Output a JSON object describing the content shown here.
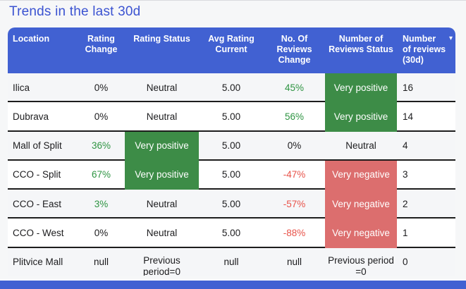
{
  "page": {
    "title": "Trends in the last 30d"
  },
  "table": {
    "sort_icon": "▾",
    "columns": [
      {
        "label": "Location"
      },
      {
        "label": "Rating Change"
      },
      {
        "label": "Rating Status"
      },
      {
        "label": "Avg Rating Current"
      },
      {
        "label": "No. Of Reviews Change"
      },
      {
        "label": "Number of Reviews Status"
      },
      {
        "label": "Number of reviews (30d)",
        "sorted": "desc"
      }
    ],
    "rows": [
      {
        "location": "Ilica",
        "rating_change": "0%",
        "rating_status": "Neutral",
        "avg_rating_current": "5.00",
        "reviews_change": "45%",
        "reviews_status": "Very positive",
        "reviews_30d": "16"
      },
      {
        "location": "Dubrava",
        "rating_change": "0%",
        "rating_status": "Neutral",
        "avg_rating_current": "5.00",
        "reviews_change": "56%",
        "reviews_status": "Very positive",
        "reviews_30d": "14"
      },
      {
        "location": "Mall of Split",
        "rating_change": "36%",
        "rating_status": "Very positive",
        "avg_rating_current": "5.00",
        "reviews_change": "0%",
        "reviews_status": "Neutral",
        "reviews_30d": "4"
      },
      {
        "location": "CCO - Split",
        "rating_change": "67%",
        "rating_status": "Very positive",
        "avg_rating_current": "5.00",
        "reviews_change": "-47%",
        "reviews_status": "Very negative",
        "reviews_30d": "3"
      },
      {
        "location": "CCO - East",
        "rating_change": "3%",
        "rating_status": "Neutral",
        "avg_rating_current": "5.00",
        "reviews_change": "-57%",
        "reviews_status": "Very negative",
        "reviews_30d": "2"
      },
      {
        "location": "CCO - West",
        "rating_change": "0%",
        "rating_status": "Neutral",
        "avg_rating_current": "5.00",
        "reviews_change": "-88%",
        "reviews_status": "Very negative",
        "reviews_30d": "1"
      },
      {
        "location": "Plitvice Mall",
        "rating_change": "null",
        "rating_status": "Previous period=0",
        "avg_rating_current": "null",
        "reviews_change": "null",
        "reviews_status": "Previous period =0",
        "reviews_30d": "0"
      }
    ]
  },
  "colors": {
    "header_blue": "#4161d2",
    "title_blue": "#3b53d1",
    "positive_fill_green": "#3d8c47",
    "positive_text_green": "#2e9442",
    "negative_fill_red": "#dc6e6e",
    "negative_text_red": "#e8534a",
    "row_separator": "#1d1d1d",
    "row_stripe": "#f5f6f8"
  }
}
